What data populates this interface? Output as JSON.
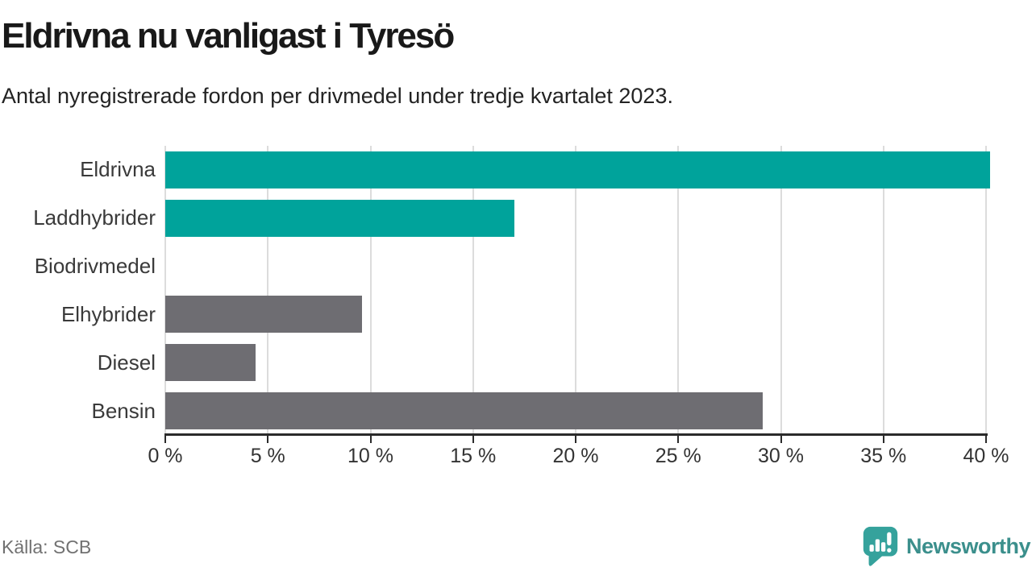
{
  "header": {
    "title": "Eldrivna nu vanligast i Tyresö",
    "subtitle": "Antal nyregistrerade fordon per drivmedel under tredje kvartalet 2023."
  },
  "chart_data": {
    "type": "bar",
    "orientation": "horizontal",
    "categories": [
      "Eldrivna",
      "Laddhybrider",
      "Biodrivmedel",
      "Elhybrider",
      "Diesel",
      "Bensin"
    ],
    "values": [
      40.2,
      17.0,
      0,
      9.6,
      4.4,
      29.1
    ],
    "unit": "%",
    "bar_colors": [
      "#00a39b",
      "#00a39b",
      "#6e6d72",
      "#6e6d72",
      "#6e6d72",
      "#6e6d72"
    ],
    "highlight_color": "#00a39b",
    "base_color": "#6e6d72",
    "xlim": [
      0,
      40
    ],
    "x_tick_values": [
      0,
      5,
      10,
      15,
      20,
      25,
      30,
      35,
      40
    ],
    "x_tick_labels": [
      "0 %",
      "5 %",
      "10 %",
      "15 %",
      "20 %",
      "25 %",
      "30 %",
      "35 %",
      "40 %"
    ],
    "grid": "vertical",
    "legend": "none"
  },
  "footer": {
    "source": "Källa: SCB",
    "brand": "Newsworthy"
  },
  "colors": {
    "accent_teal": "#00a39b",
    "bar_gray": "#6e6d72",
    "gridline": "#dcdcdc",
    "axis": "#2b2b2b",
    "title_text": "#191919",
    "source_text": "#717171",
    "brand_teal": "#3b8f8c",
    "logo_bubble": "#35a29c"
  }
}
